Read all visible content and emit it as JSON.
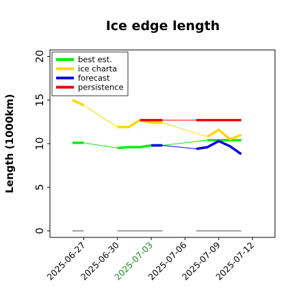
{
  "chart_data": {
    "type": "line",
    "title": "Ice edge length",
    "xlabel": "",
    "ylabel": "Length (1000km)",
    "ylim": [
      0,
      20
    ],
    "yticks": [
      "0",
      "5",
      "10",
      "15",
      "20"
    ],
    "xlim": [
      "2025-06-24",
      "2025-07-14"
    ],
    "xticks": [
      {
        "date": "2025-06-27",
        "label": "2025-06-27",
        "color": "#000000"
      },
      {
        "date": "2025-06-30",
        "label": "2025-06-30",
        "color": "#000000"
      },
      {
        "date": "2025-07-03",
        "label": "2025-07-03",
        "color": "#228b22"
      },
      {
        "date": "2025-07-06",
        "label": "2025-07-06",
        "color": "#000000"
      },
      {
        "date": "2025-07-09",
        "label": "2025-07-09",
        "color": "#000000"
      },
      {
        "date": "2025-07-12",
        "label": "2025-07-12",
        "color": "#000000"
      }
    ],
    "legend_position": "top-left",
    "series": [
      {
        "name": "best est.",
        "color": "#00ee00",
        "segments": [
          {
            "thick": true,
            "x": [
              "2025-06-26",
              "2025-06-27"
            ],
            "y": [
              10.1,
              10.1
            ]
          },
          {
            "thick": false,
            "x": [
              "2025-06-27",
              "2025-06-30"
            ],
            "y": [
              10.1,
              9.5
            ]
          },
          {
            "thick": true,
            "x": [
              "2025-06-30",
              "2025-07-01",
              "2025-07-02",
              "2025-07-03",
              "2025-07-04"
            ],
            "y": [
              9.5,
              9.6,
              9.6,
              9.8,
              9.8
            ]
          },
          {
            "thick": false,
            "x": [
              "2025-07-04",
              "2025-07-08"
            ],
            "y": [
              9.8,
              10.4
            ]
          },
          {
            "thick": true,
            "x": [
              "2025-07-08",
              "2025-07-09",
              "2025-07-10",
              "2025-07-11"
            ],
            "y": [
              10.4,
              10.4,
              10.4,
              10.4
            ]
          }
        ]
      },
      {
        "name": "ice charta",
        "color": "#ffd700",
        "segments": [
          {
            "thick": true,
            "x": [
              "2025-06-26",
              "2025-06-27"
            ],
            "y": [
              15.0,
              14.4
            ]
          },
          {
            "thick": false,
            "x": [
              "2025-06-27",
              "2025-06-30"
            ],
            "y": [
              14.4,
              11.9
            ]
          },
          {
            "thick": true,
            "x": [
              "2025-06-30",
              "2025-07-01",
              "2025-07-02",
              "2025-07-03",
              "2025-07-04"
            ],
            "y": [
              11.9,
              11.9,
              12.7,
              12.4,
              12.4
            ]
          },
          {
            "thick": false,
            "x": [
              "2025-07-04",
              "2025-07-08"
            ],
            "y": [
              12.4,
              10.8
            ]
          },
          {
            "thick": true,
            "x": [
              "2025-07-08",
              "2025-07-09",
              "2025-07-10",
              "2025-07-11"
            ],
            "y": [
              10.8,
              11.6,
              10.5,
              11.0
            ]
          }
        ]
      },
      {
        "name": "forecast",
        "color": "#0000ee",
        "segments": [
          {
            "thick": true,
            "x": [
              "2025-07-03",
              "2025-07-04"
            ],
            "y": [
              9.8,
              9.8
            ]
          },
          {
            "thick": false,
            "x": [
              "2025-07-04",
              "2025-07-07"
            ],
            "y": [
              9.8,
              9.4
            ]
          },
          {
            "thick": true,
            "x": [
              "2025-07-07",
              "2025-07-08",
              "2025-07-09",
              "2025-07-10",
              "2025-07-11"
            ],
            "y": [
              9.4,
              9.6,
              10.3,
              9.7,
              8.8
            ]
          }
        ]
      },
      {
        "name": "persistence",
        "color": "#ee0000",
        "segments": [
          {
            "thick": true,
            "x": [
              "2025-07-02",
              "2025-07-04"
            ],
            "y": [
              12.7,
              12.7
            ]
          },
          {
            "thick": false,
            "x": [
              "2025-07-04",
              "2025-07-07"
            ],
            "y": [
              12.7,
              12.7
            ]
          },
          {
            "thick": true,
            "x": [
              "2025-07-07",
              "2025-07-11"
            ],
            "y": [
              12.7,
              12.7
            ]
          }
        ]
      }
    ],
    "baseline_segments": [
      {
        "x": [
          "2025-06-26",
          "2025-06-27"
        ],
        "y": [
          0,
          0
        ]
      },
      {
        "x": [
          "2025-06-30",
          "2025-07-04"
        ],
        "y": [
          0,
          0
        ]
      },
      {
        "x": [
          "2025-07-07",
          "2025-07-11"
        ],
        "y": [
          0,
          0
        ]
      }
    ]
  }
}
